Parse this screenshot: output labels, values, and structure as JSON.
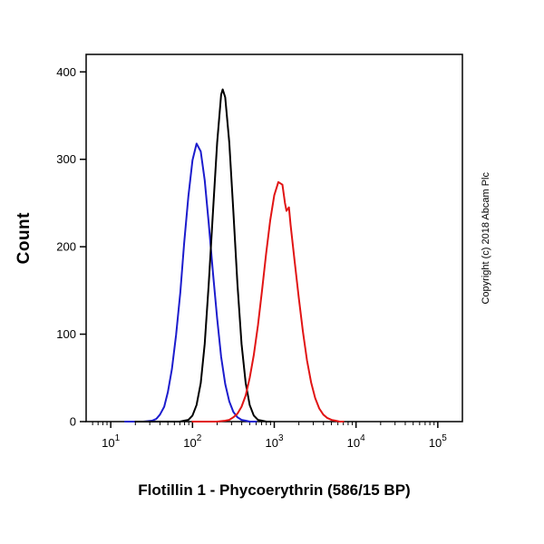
{
  "copyright": "Copyright (c) 2018 Abcam Plc",
  "chart_data": {
    "type": "line",
    "title": "",
    "xlabel": "Flotillin 1 - Phycoerythrin (586/15 BP)",
    "ylabel": "Count",
    "x_scale": "log",
    "xlim": [
      5,
      200000
    ],
    "ylim": [
      0,
      420
    ],
    "x_tick_exponents": [
      1,
      2,
      3,
      4,
      5
    ],
    "y_ticks": [
      0,
      100,
      200,
      300,
      400
    ],
    "grid": false,
    "legend": "none",
    "series": [
      {
        "name": "blue-control",
        "color": "#1c1ccd",
        "peak_x": 112,
        "peak_y": 318,
        "points": [
          [
            15,
            0
          ],
          [
            20,
            0
          ],
          [
            25,
            0
          ],
          [
            32,
            1
          ],
          [
            36,
            3
          ],
          [
            40,
            8
          ],
          [
            45,
            17
          ],
          [
            50,
            34
          ],
          [
            56,
            60
          ],
          [
            63,
            99
          ],
          [
            71,
            148
          ],
          [
            79,
            204
          ],
          [
            89,
            258
          ],
          [
            100,
            299
          ],
          [
            112,
            318
          ],
          [
            126,
            309
          ],
          [
            141,
            276
          ],
          [
            158,
            227
          ],
          [
            178,
            170
          ],
          [
            200,
            118
          ],
          [
            224,
            74
          ],
          [
            251,
            43
          ],
          [
            282,
            23
          ],
          [
            316,
            11
          ],
          [
            355,
            5
          ],
          [
            398,
            2
          ],
          [
            447,
            1
          ],
          [
            500,
            0
          ],
          [
            600,
            0
          ]
        ]
      },
      {
        "name": "black-unlabelled",
        "color": "#000000",
        "peak_x": 234,
        "peak_y": 380,
        "points": [
          [
            20,
            0
          ],
          [
            50,
            0
          ],
          [
            70,
            0
          ],
          [
            79,
            1
          ],
          [
            89,
            2
          ],
          [
            100,
            7
          ],
          [
            112,
            19
          ],
          [
            126,
            44
          ],
          [
            141,
            89
          ],
          [
            158,
            157
          ],
          [
            178,
            240
          ],
          [
            200,
            319
          ],
          [
            224,
            374
          ],
          [
            234,
            380
          ],
          [
            251,
            371
          ],
          [
            282,
            319
          ],
          [
            316,
            240
          ],
          [
            355,
            157
          ],
          [
            398,
            89
          ],
          [
            447,
            44
          ],
          [
            501,
            19
          ],
          [
            562,
            7
          ],
          [
            631,
            2
          ],
          [
            708,
            1
          ],
          [
            800,
            0
          ],
          [
            900,
            0
          ]
        ]
      },
      {
        "name": "red-flotillin1",
        "color": "#e11414",
        "peak_x": 1122,
        "peak_y": 274,
        "points": [
          [
            100,
            0
          ],
          [
            160,
            0
          ],
          [
            200,
            0
          ],
          [
            251,
            1
          ],
          [
            282,
            2
          ],
          [
            316,
            5
          ],
          [
            355,
            9
          ],
          [
            398,
            17
          ],
          [
            447,
            30
          ],
          [
            501,
            50
          ],
          [
            562,
            76
          ],
          [
            631,
            110
          ],
          [
            708,
            150
          ],
          [
            794,
            192
          ],
          [
            891,
            230
          ],
          [
            1000,
            259
          ],
          [
            1122,
            274
          ],
          [
            1259,
            271
          ],
          [
            1350,
            250
          ],
          [
            1413,
            241
          ],
          [
            1514,
            245
          ],
          [
            1585,
            225
          ],
          [
            1778,
            183
          ],
          [
            1995,
            142
          ],
          [
            2239,
            103
          ],
          [
            2512,
            70
          ],
          [
            2818,
            45
          ],
          [
            3162,
            27
          ],
          [
            3548,
            15
          ],
          [
            3981,
            8
          ],
          [
            4467,
            4
          ],
          [
            5012,
            2
          ],
          [
            5623,
            1
          ],
          [
            6310,
            0
          ],
          [
            7000,
            0
          ]
        ]
      }
    ]
  }
}
